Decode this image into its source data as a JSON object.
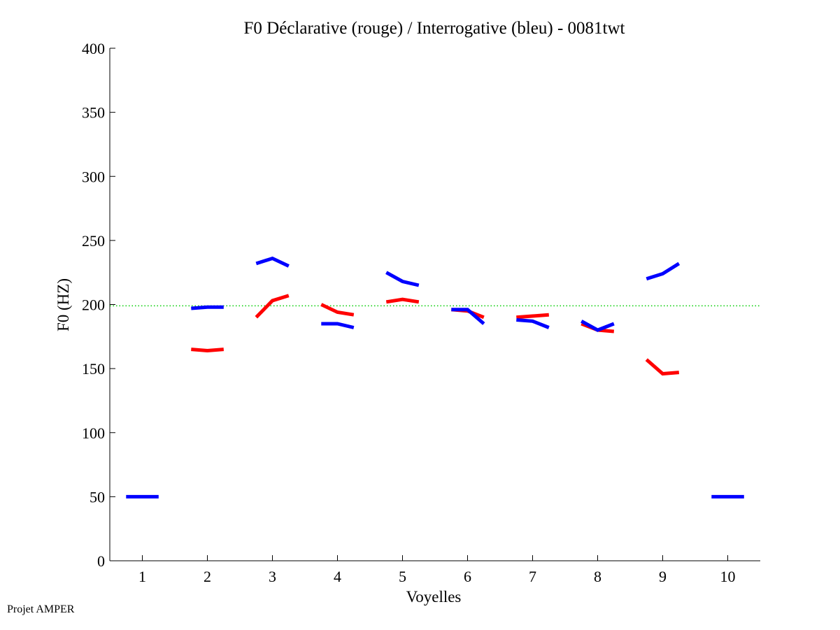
{
  "chart_data": {
    "type": "line",
    "title": "F0 Déclarative (rouge) / Interrogative (bleu) - 0081twt",
    "xlabel": "Voyelles",
    "ylabel": "F0 (HZ)",
    "xlim": [
      0.5,
      10.5
    ],
    "ylim": [
      0,
      400
    ],
    "xticks": [
      1,
      2,
      3,
      4,
      5,
      6,
      7,
      8,
      9,
      10
    ],
    "xtick_labels": [
      "1",
      "2",
      "3",
      "4",
      "5",
      "6",
      "7",
      "8",
      "9",
      "10"
    ],
    "yticks": [
      0,
      50,
      100,
      150,
      200,
      250,
      300,
      350,
      400
    ],
    "ytick_labels": [
      "0",
      "50",
      "100",
      "150",
      "200",
      "250",
      "300",
      "350",
      "400"
    ],
    "reference_line": {
      "y": 199,
      "color": "#00cc00",
      "style": "dotted"
    },
    "series": [
      {
        "name": "Déclarative",
        "color": "#ff0000",
        "segments": [
          {
            "vowel": 2,
            "x": [
              1.75,
              2.0,
              2.25
            ],
            "y": [
              165,
              164,
              165
            ]
          },
          {
            "vowel": 3,
            "x": [
              2.75,
              3.0,
              3.25
            ],
            "y": [
              190,
              203,
              207
            ]
          },
          {
            "vowel": 4,
            "x": [
              3.75,
              4.0,
              4.25
            ],
            "y": [
              200,
              194,
              192
            ]
          },
          {
            "vowel": 5,
            "x": [
              4.75,
              5.0,
              5.25
            ],
            "y": [
              202,
              204,
              202
            ]
          },
          {
            "vowel": 6,
            "x": [
              5.75,
              6.0,
              6.25
            ],
            "y": [
              196,
              195,
              190
            ]
          },
          {
            "vowel": 7,
            "x": [
              6.75,
              7.0,
              7.25
            ],
            "y": [
              190,
              191,
              192
            ]
          },
          {
            "vowel": 8,
            "x": [
              7.75,
              8.0,
              8.25
            ],
            "y": [
              185,
              180,
              179
            ]
          },
          {
            "vowel": 9,
            "x": [
              8.75,
              9.0,
              9.25
            ],
            "y": [
              157,
              146,
              147
            ]
          }
        ]
      },
      {
        "name": "Interrogative",
        "color": "#0000ff",
        "segments": [
          {
            "vowel": 1,
            "x": [
              0.75,
              1.0,
              1.25
            ],
            "y": [
              50,
              50,
              50
            ]
          },
          {
            "vowel": 2,
            "x": [
              1.75,
              2.0,
              2.25
            ],
            "y": [
              197,
              198,
              198
            ]
          },
          {
            "vowel": 3,
            "x": [
              2.75,
              3.0,
              3.25
            ],
            "y": [
              232,
              236,
              230
            ]
          },
          {
            "vowel": 4,
            "x": [
              3.75,
              4.0,
              4.25
            ],
            "y": [
              185,
              185,
              182
            ]
          },
          {
            "vowel": 5,
            "x": [
              4.75,
              5.0,
              5.25
            ],
            "y": [
              225,
              218,
              215
            ]
          },
          {
            "vowel": 6,
            "x": [
              5.75,
              6.0,
              6.25
            ],
            "y": [
              196,
              196,
              185
            ]
          },
          {
            "vowel": 7,
            "x": [
              6.75,
              7.0,
              7.25
            ],
            "y": [
              188,
              187,
              182
            ]
          },
          {
            "vowel": 8,
            "x": [
              7.75,
              8.0,
              8.25
            ],
            "y": [
              187,
              180,
              185
            ]
          },
          {
            "vowel": 9,
            "x": [
              8.75,
              9.0,
              9.25
            ],
            "y": [
              220,
              224,
              232
            ]
          },
          {
            "vowel": 10,
            "x": [
              9.75,
              10.0,
              10.25
            ],
            "y": [
              50,
              50,
              50
            ]
          }
        ]
      }
    ]
  },
  "footer": {
    "text": "Projet AMPER"
  }
}
